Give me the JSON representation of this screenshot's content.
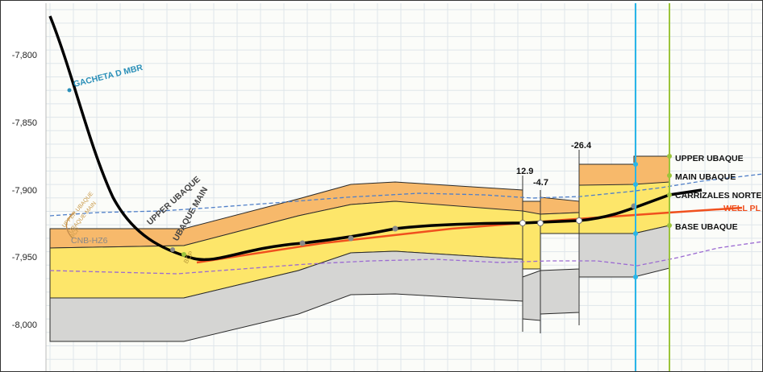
{
  "axis": {
    "depth_ticks": [
      "-7,800",
      "-7,850",
      "-7,900",
      "-7,950",
      "-8,000"
    ]
  },
  "labels": {
    "gacheta": "GACHETA D MBR",
    "upper_ubaque_diag": "UPPER UBAQUE",
    "ubaque_main_diag": "UBAQUE MAIN",
    "cnb_hz6": "CNB-HZ6",
    "left_upper_ubaque": "UPPER UBAQUE",
    "left_ubaque_main": "UBAQUE MAIN",
    "left_bcp": "BCP",
    "bcp_small": "BCP",
    "right_upper_ubaque": "UPPER UBAQUE",
    "right_main_ubaque": "MAIN UBAQUE",
    "right_carrizales": "CARRIZALES NORTE",
    "right_well_plan": "WELL PL",
    "right_base_ubaque": "BASE UBAQUE"
  },
  "faults": [
    "12.9",
    "-4.7",
    "-26.4"
  ],
  "colors": {
    "upper_layer": "#f7b96b",
    "main_layer": "#fde66a",
    "base_layer": "#d5d5d3",
    "well_plan": "#f0501e",
    "well_path": "#000000",
    "blue_line": "#29b6e8",
    "green_line": "#9cc43a",
    "dashed_blue": "#4f7fc8",
    "dashed_purple": "#9b6ad2",
    "gacheta_text": "#2a8fb8",
    "grid": "#dfe6ea"
  }
}
